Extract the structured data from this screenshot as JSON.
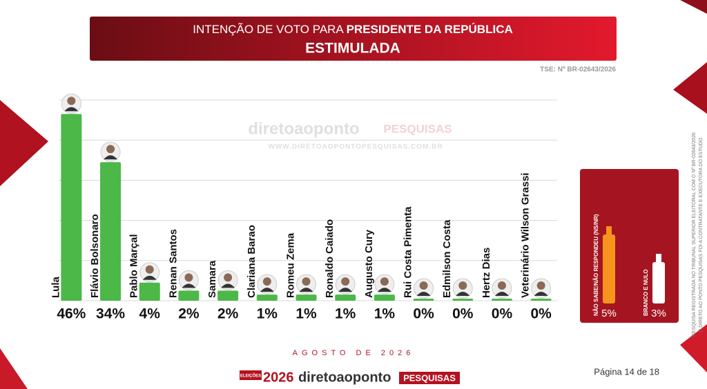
{
  "chart_data": {
    "type": "bar",
    "title": "INTENÇÃO DE VOTO PARA",
    "title_emphasis": "PRESIDENTE DA REPÚBLICA",
    "subtitle": "ESTIMULADA",
    "registration": "TSE: Nº BR-02643/2026",
    "categories": [
      "Lula",
      "Flávio Bolsonaro",
      "Pablo Marçal",
      "Renan Santos",
      "Samara",
      "Clariana Barao",
      "Romeu Zema",
      "Ronaldo Caiado",
      "Augusto Cury",
      "Rui Costa Pimenta",
      "Edmilson Costa",
      "Hertz Dias",
      "Veterinário Wilson Grassi"
    ],
    "values": [
      46,
      34,
      4,
      2,
      2,
      1,
      1,
      1,
      1,
      0,
      0,
      0,
      0
    ],
    "value_labels": [
      "46%",
      "34%",
      "4%",
      "2%",
      "2%",
      "1%",
      "1%",
      "1%",
      "1%",
      "0%",
      "0%",
      "0%",
      "0%"
    ],
    "color": "#4cb848",
    "ylim": [
      0,
      50
    ],
    "yticks": [
      0,
      10,
      20,
      30,
      40,
      50
    ],
    "grid": true,
    "others": [
      {
        "name": "NÃO SABE/NÃO RESPONDEU (NS/NR)",
        "value": 5,
        "value_label": "5%",
        "color": "#f7941d"
      },
      {
        "name": "BRANCO E NULO",
        "value": 3,
        "value_label": "3%",
        "color": "#ffffff"
      }
    ]
  },
  "footer": {
    "date": "AGOSTO DE 2026",
    "page": "Página 14 de 18",
    "logo_badge": "ELEIÇÕES",
    "logo_year": "2026",
    "logo_name": "diretoaoponto",
    "logo_tag": "PESQUISAS",
    "watermark_name": "diretoaoponto",
    "watermark_tag": "PESQUISAS",
    "watermark_url": "WWW.DIRETOAOPONTOPESQUISAS.COM.BR",
    "note_1": "PESQUISA REGISTRADA NO TRIBUNAL SUPERIOR ELEITORAL COM O Nº BR-02643/2026",
    "note_2": "O DIRETO AO PONTO PESQUISAS FOI A CONTRATANTE E EXECUTORA DO ESTUDO."
  }
}
